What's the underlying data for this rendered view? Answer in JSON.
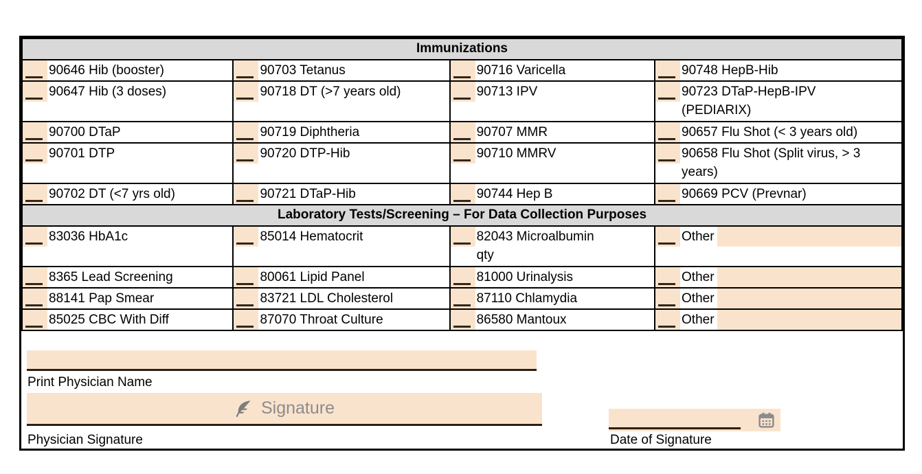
{
  "colors": {
    "highlight": "#fae3cd",
    "section_header_bg": "#d9d9d9",
    "border": "#000000",
    "underline": "#2b2014",
    "placeholder_gray": "#8c8c8c"
  },
  "immunizations": {
    "title": "Immunizations",
    "rows": [
      {
        "tall": false,
        "cells": [
          {
            "label": "90646 Hib (booster)"
          },
          {
            "label": "90703 Tetanus"
          },
          {
            "label": "90716 Varicella"
          },
          {
            "label": "90748 HepB-Hib"
          }
        ]
      },
      {
        "tall": true,
        "cells": [
          {
            "label": "90647  Hib (3 doses)"
          },
          {
            "label": "90718 DT (>7 years old)"
          },
          {
            "label": "90713 IPV"
          },
          {
            "label": "90723 DTaP-HepB-IPV\n(PEDIARIX)"
          }
        ]
      },
      {
        "tall": false,
        "cells": [
          {
            "label": "90700 DTaP"
          },
          {
            "label": "90719 Diphtheria"
          },
          {
            "label": "90707 MMR"
          },
          {
            "label": "90657 Flu Shot (< 3 years old)"
          }
        ]
      },
      {
        "tall": true,
        "cells": [
          {
            "label": "90701 DTP"
          },
          {
            "label": "90720 DTP-Hib"
          },
          {
            "label": "90710 MMRV"
          },
          {
            "label": "90658 Flu Shot (Split virus, > 3\nyears)"
          }
        ]
      },
      {
        "tall": false,
        "cells": [
          {
            "label": "90702 DT (<7 yrs old)"
          },
          {
            "label": "90721 DTaP-Hib"
          },
          {
            "label": "90744 Hep B"
          },
          {
            "label": "90669 PCV (Prevnar)"
          }
        ]
      }
    ]
  },
  "laboratory": {
    "title": "Laboratory Tests/Screening – For Data Collection Purposes",
    "rows": [
      {
        "tall": true,
        "cells": [
          {
            "label": "83036 HbA1c"
          },
          {
            "label": "85014 Hematocrit"
          },
          {
            "label": "82043 Microalbumin\nqty"
          },
          {
            "label": "Other",
            "fill": true
          }
        ]
      },
      {
        "tall": false,
        "cells": [
          {
            "label": "8365 Lead Screening"
          },
          {
            "label": "80061 Lipid Panel"
          },
          {
            "label": "81000 Urinalysis"
          },
          {
            "label": "Other",
            "fill": true
          }
        ]
      },
      {
        "tall": false,
        "cells": [
          {
            "label": "88141 Pap Smear"
          },
          {
            "label": "83721 LDL Cholesterol"
          },
          {
            "label": "87110 Chlamydia"
          },
          {
            "label": "Other",
            "fill": true
          }
        ]
      },
      {
        "tall": false,
        "cells": [
          {
            "label": "85025 CBC With Diff"
          },
          {
            "label": "87070 Throat Culture"
          },
          {
            "label": "86580 Mantoux"
          },
          {
            "label": "Other",
            "fill": true
          }
        ]
      }
    ]
  },
  "signature_section": {
    "print_name_label": "Print Physician Name",
    "signature_placeholder": "Signature",
    "signature_label": "Physician Signature",
    "date_label": "Date of Signature"
  }
}
